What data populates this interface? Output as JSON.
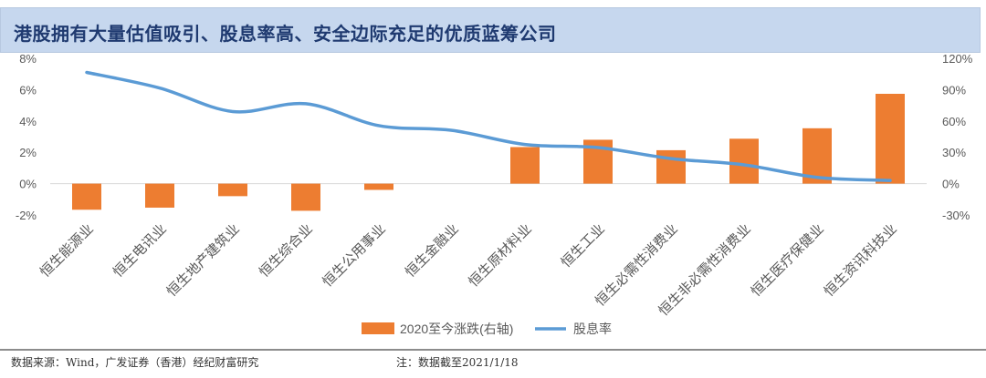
{
  "header": {
    "title": "港股拥有大量估值吸引、股息率高、安全边际充足的优质蓝筹公司"
  },
  "chart_data": {
    "type": "bar+line",
    "categories": [
      "恒生能源业",
      "恒生电讯业",
      "恒生地产建筑业",
      "恒生综合业",
      "恒生公用事业",
      "恒生金融业",
      "恒生原材料业",
      "恒生工业",
      "恒生必需性消费业",
      "恒生非必需性消费业",
      "恒生医疗保健业",
      "恒生资讯科技业"
    ],
    "series": [
      {
        "name": "2020至今涨跌(右轴)",
        "type": "bar",
        "axis": "right",
        "color": "#ed7d31",
        "values": [
          -25,
          -23,
          -12,
          -26,
          -6,
          0,
          35,
          42,
          32,
          43,
          53,
          86
        ]
      },
      {
        "name": "股息率",
        "type": "line",
        "axis": "left",
        "color": "#5b9bd5",
        "values": [
          7.1,
          6.1,
          4.6,
          5.1,
          3.7,
          3.4,
          2.5,
          2.3,
          1.6,
          1.2,
          0.4,
          0.2
        ]
      }
    ],
    "left_axis": {
      "ylim": [
        -2,
        8
      ],
      "ticks": [
        "-2%",
        "0%",
        "2%",
        "4%",
        "6%",
        "8%"
      ]
    },
    "right_axis": {
      "ylim": [
        -30,
        120
      ],
      "ticks": [
        "-30%",
        "0%",
        "30%",
        "60%",
        "90%",
        "120%"
      ]
    },
    "grid": false,
    "legend": "bottom"
  },
  "footer": {
    "source": "数据来源：Wind，广发证券（香港）经纪财富研究",
    "note": "注：数据截至2021/1/18"
  }
}
